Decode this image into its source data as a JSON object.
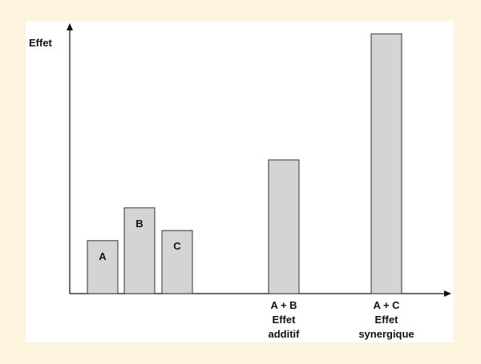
{
  "chart_data": {
    "type": "bar",
    "ylabel": "Effet",
    "categories": [
      {
        "inside_label": "A",
        "below_lines": []
      },
      {
        "inside_label": "B",
        "below_lines": []
      },
      {
        "inside_label": "C",
        "below_lines": []
      },
      {
        "inside_label": "",
        "below_lines": [
          "A + B",
          "Effet",
          "additif"
        ]
      },
      {
        "inside_label": "",
        "below_lines": [
          "A + C",
          "Effet",
          "synergique"
        ]
      }
    ],
    "values": [
      2.1,
      3.4,
      2.5,
      5.3,
      10.3
    ],
    "ylim": [
      0,
      10.5
    ],
    "grid": false,
    "legend": "none",
    "bar_fill": "#d4d4d4",
    "bar_stroke": "#333333",
    "axis_color": "#111111"
  }
}
